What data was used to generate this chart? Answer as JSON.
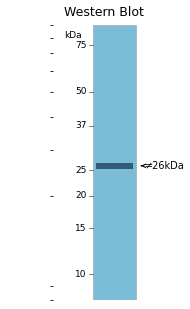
{
  "title": "Western Blot",
  "kda_label": "kDa",
  "markers": [
    75,
    50,
    37,
    25,
    20,
    15,
    10
  ],
  "band_kda": 26,
  "band_annotation": "≠26kDa",
  "lane_color": "#7bbdd6",
  "band_color": "#2a5070",
  "background_color": "#ffffff",
  "fig_width": 1.9,
  "fig_height": 3.09,
  "dpi": 100,
  "ymin": 8,
  "ymax": 90,
  "marker_fontsize": 6.5,
  "title_fontsize": 9,
  "annotation_fontsize": 7
}
